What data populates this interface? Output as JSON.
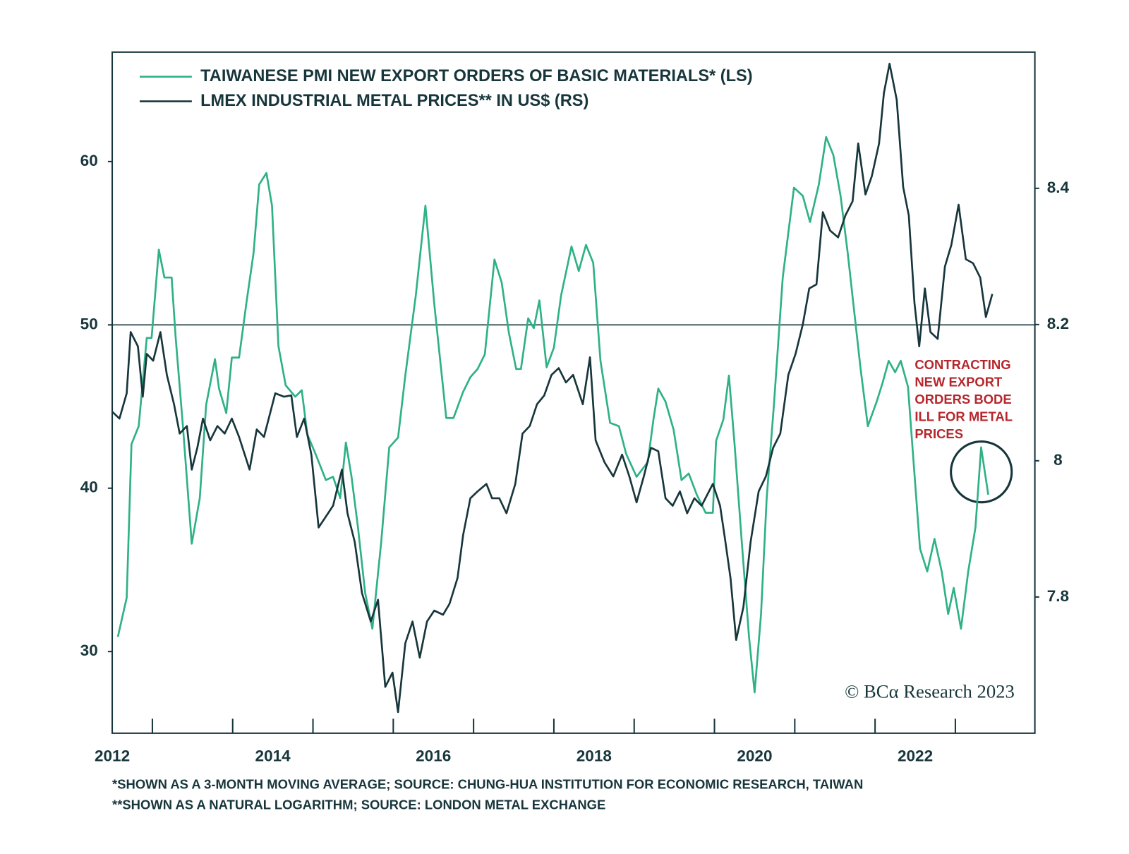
{
  "chart_data": {
    "type": "line",
    "legend": "top-left",
    "xlim": [
      2012,
      2023.49
    ],
    "xticks": [
      2012,
      2014,
      2016,
      2018,
      2020,
      2022
    ],
    "xminorticks": [
      2012.5,
      2013.5,
      2014.5,
      2015.5,
      2016.5,
      2017.5,
      2018.5,
      2019.5,
      2020.5,
      2021.5,
      2022.5
    ],
    "ylim": [
      25,
      66.7
    ],
    "yticks": [
      30,
      40,
      50,
      60
    ],
    "y2lim": [
      7.6,
      8.6
    ],
    "y2ticks": [
      7.8,
      8.0,
      8.2,
      8.4
    ],
    "hline": 50,
    "series": [
      {
        "name": "TAIWANESE PMI NEW EXPORT ORDERS OF BASIC MATERIALS* (LS)",
        "color": "#2fb186",
        "axis": "y",
        "x": [
          2012.07,
          2012.18,
          2012.24,
          2012.33,
          2012.43,
          2012.49,
          2012.58,
          2012.65,
          2012.74,
          2012.79,
          2012.88,
          2012.99,
          2013.09,
          2013.17,
          2013.28,
          2013.33,
          2013.42,
          2013.49,
          2013.58,
          2013.67,
          2013.76,
          2013.83,
          2013.92,
          2013.99,
          2014.07,
          2014.16,
          2014.28,
          2014.36,
          2014.43,
          2014.54,
          2014.66,
          2014.75,
          2014.84,
          2014.91,
          2014.98,
          2015.06,
          2015.15,
          2015.24,
          2015.35,
          2015.45,
          2015.56,
          2015.65,
          2015.78,
          2015.9,
          2016.01,
          2016.16,
          2016.25,
          2016.37,
          2016.46,
          2016.55,
          2016.64,
          2016.76,
          2016.85,
          2016.94,
          2017.03,
          2017.09,
          2017.18,
          2017.25,
          2017.32,
          2017.41,
          2017.5,
          2017.59,
          2017.72,
          2017.81,
          2017.9,
          2017.99,
          2018.08,
          2018.2,
          2018.31,
          2018.4,
          2018.53,
          2018.67,
          2018.74,
          2018.8,
          2018.89,
          2018.99,
          2019.09,
          2019.18,
          2019.28,
          2019.39,
          2019.48,
          2019.52,
          2019.61,
          2019.68,
          2019.75,
          2019.84,
          2019.93,
          2020.0,
          2020.08,
          2020.15,
          2020.24,
          2020.35,
          2020.49,
          2020.6,
          2020.69,
          2020.8,
          2020.89,
          2020.98,
          2021.07,
          2021.16,
          2021.25,
          2021.32,
          2021.41,
          2021.52,
          2021.59,
          2021.67,
          2021.75,
          2021.82,
          2021.91,
          2021.98,
          2022.06,
          2022.15,
          2022.24,
          2022.33,
          2022.41,
          2022.48,
          2022.57,
          2022.66,
          2022.75,
          2022.82,
          2022.91
        ],
        "values": [
          30.9,
          33.3,
          42.7,
          43.8,
          49.2,
          49.2,
          54.6,
          52.9,
          52.9,
          49.2,
          43.8,
          36.6,
          39.4,
          45.1,
          47.9,
          46.1,
          44.6,
          48.0,
          48.0,
          51.3,
          54.4,
          58.6,
          59.3,
          57.3,
          48.7,
          46.3,
          45.6,
          46.0,
          43.3,
          42.0,
          40.5,
          40.7,
          39.4,
          42.8,
          40.7,
          37.6,
          33.6,
          31.4,
          36.7,
          42.5,
          43.1,
          46.9,
          51.8,
          57.3,
          51.3,
          44.3,
          44.3,
          45.9,
          46.8,
          47.3,
          48.2,
          54.0,
          52.6,
          49.5,
          47.3,
          47.3,
          50.4,
          49.8,
          51.5,
          47.4,
          48.6,
          51.8,
          54.8,
          53.3,
          54.9,
          53.8,
          47.8,
          44.0,
          43.8,
          42.1,
          40.7,
          41.6,
          44.2,
          46.1,
          45.3,
          43.6,
          40.5,
          40.9,
          39.6,
          38.5,
          38.5,
          42.9,
          44.2,
          46.9,
          42.7,
          36.7,
          30.9,
          27.5,
          32.3,
          39.4,
          45.1,
          52.9,
          58.4,
          57.9,
          56.3,
          58.6,
          61.5,
          60.4,
          57.9,
          54.4,
          50.4,
          47.3,
          43.8,
          45.3,
          46.4,
          47.8,
          47.1,
          47.8,
          46.2,
          41.6,
          36.3,
          34.9,
          36.9,
          34.9,
          32.3,
          33.9,
          31.4,
          34.9,
          37.6,
          42.5,
          39.6
        ]
      },
      {
        "name": "LMEX INDUSTRIAL METAL PRICES** IN US$ (RS)",
        "color": "#17363c",
        "axis": "y2",
        "x": [
          2012.0,
          2012.09,
          2012.18,
          2012.23,
          2012.32,
          2012.38,
          2012.43,
          2012.51,
          2012.6,
          2012.68,
          2012.77,
          2012.84,
          2012.93,
          2012.99,
          2013.06,
          2013.13,
          2013.22,
          2013.31,
          2013.4,
          2013.49,
          2013.58,
          2013.71,
          2013.8,
          2013.89,
          2014.03,
          2014.14,
          2014.23,
          2014.3,
          2014.39,
          2014.48,
          2014.57,
          2014.66,
          2014.75,
          2014.86,
          2014.93,
          2015.02,
          2015.11,
          2015.22,
          2015.31,
          2015.4,
          2015.49,
          2015.56,
          2015.65,
          2015.74,
          2015.83,
          2015.92,
          2016.01,
          2016.12,
          2016.2,
          2016.3,
          2016.37,
          2016.46,
          2016.55,
          2016.66,
          2016.73,
          2016.82,
          2016.91,
          2017.02,
          2017.11,
          2017.2,
          2017.29,
          2017.38,
          2017.47,
          2017.56,
          2017.65,
          2017.74,
          2017.86,
          2017.95,
          2018.02,
          2018.13,
          2018.24,
          2018.35,
          2018.44,
          2018.53,
          2018.62,
          2018.71,
          2018.8,
          2018.89,
          2018.98,
          2019.07,
          2019.16,
          2019.25,
          2019.34,
          2019.48,
          2019.57,
          2019.63,
          2019.7,
          2019.77,
          2019.86,
          2019.95,
          2020.05,
          2020.14,
          2020.23,
          2020.32,
          2020.42,
          2020.51,
          2020.6,
          2020.68,
          2020.77,
          2020.85,
          2020.94,
          2021.04,
          2021.13,
          2021.22,
          2021.29,
          2021.38,
          2021.46,
          2021.55,
          2021.61,
          2021.68,
          2021.77,
          2021.85,
          2021.92,
          2021.99,
          2022.05,
          2022.12,
          2022.19,
          2022.28,
          2022.37,
          2022.45,
          2022.54,
          2022.63,
          2022.72,
          2022.81,
          2022.88,
          2022.96
        ],
        "values": [
          8.072,
          8.062,
          8.099,
          8.189,
          8.168,
          8.094,
          8.157,
          8.147,
          8.189,
          8.126,
          8.083,
          8.04,
          8.051,
          7.987,
          8.019,
          8.062,
          8.03,
          8.051,
          8.04,
          8.062,
          8.035,
          7.987,
          8.046,
          8.035,
          8.099,
          8.094,
          8.096,
          8.035,
          8.062,
          8.009,
          7.902,
          7.918,
          7.934,
          7.987,
          7.923,
          7.881,
          7.806,
          7.764,
          7.796,
          7.668,
          7.689,
          7.631,
          7.732,
          7.764,
          7.711,
          7.764,
          7.78,
          7.774,
          7.79,
          7.828,
          7.891,
          7.945,
          7.955,
          7.966,
          7.945,
          7.945,
          7.923,
          7.966,
          8.04,
          8.051,
          8.083,
          8.096,
          8.126,
          8.136,
          8.115,
          8.126,
          8.083,
          8.152,
          8.03,
          7.998,
          7.977,
          8.009,
          7.977,
          7.939,
          7.977,
          8.019,
          8.014,
          7.945,
          7.934,
          7.955,
          7.923,
          7.945,
          7.934,
          7.966,
          7.934,
          7.886,
          7.828,
          7.737,
          7.785,
          7.881,
          7.955,
          7.977,
          8.019,
          8.04,
          8.126,
          8.157,
          8.2,
          8.253,
          8.259,
          8.365,
          8.338,
          8.328,
          8.36,
          8.381,
          8.466,
          8.391,
          8.418,
          8.466,
          8.54,
          8.583,
          8.53,
          8.402,
          8.36,
          8.232,
          8.168,
          8.253,
          8.189,
          8.179,
          8.285,
          8.317,
          8.376,
          8.296,
          8.29,
          8.269,
          8.211,
          8.245
        ]
      }
    ],
    "annotation": [
      "CONTRACTING",
      "NEW EXPORT",
      "ORDERS BODE",
      "ILL FOR METAL",
      "PRICES"
    ],
    "credit": "© BCα Research 2023",
    "footnotes": [
      "*SHOWN AS A 3-MONTH MOVING AVERAGE; SOURCE: CHUNG-HUA INSTITUTION FOR ECONOMIC RESEARCH, TAIWAN",
      "**SHOWN AS A NATURAL LOGARITHM; SOURCE: LONDON METAL EXCHANGE"
    ]
  }
}
